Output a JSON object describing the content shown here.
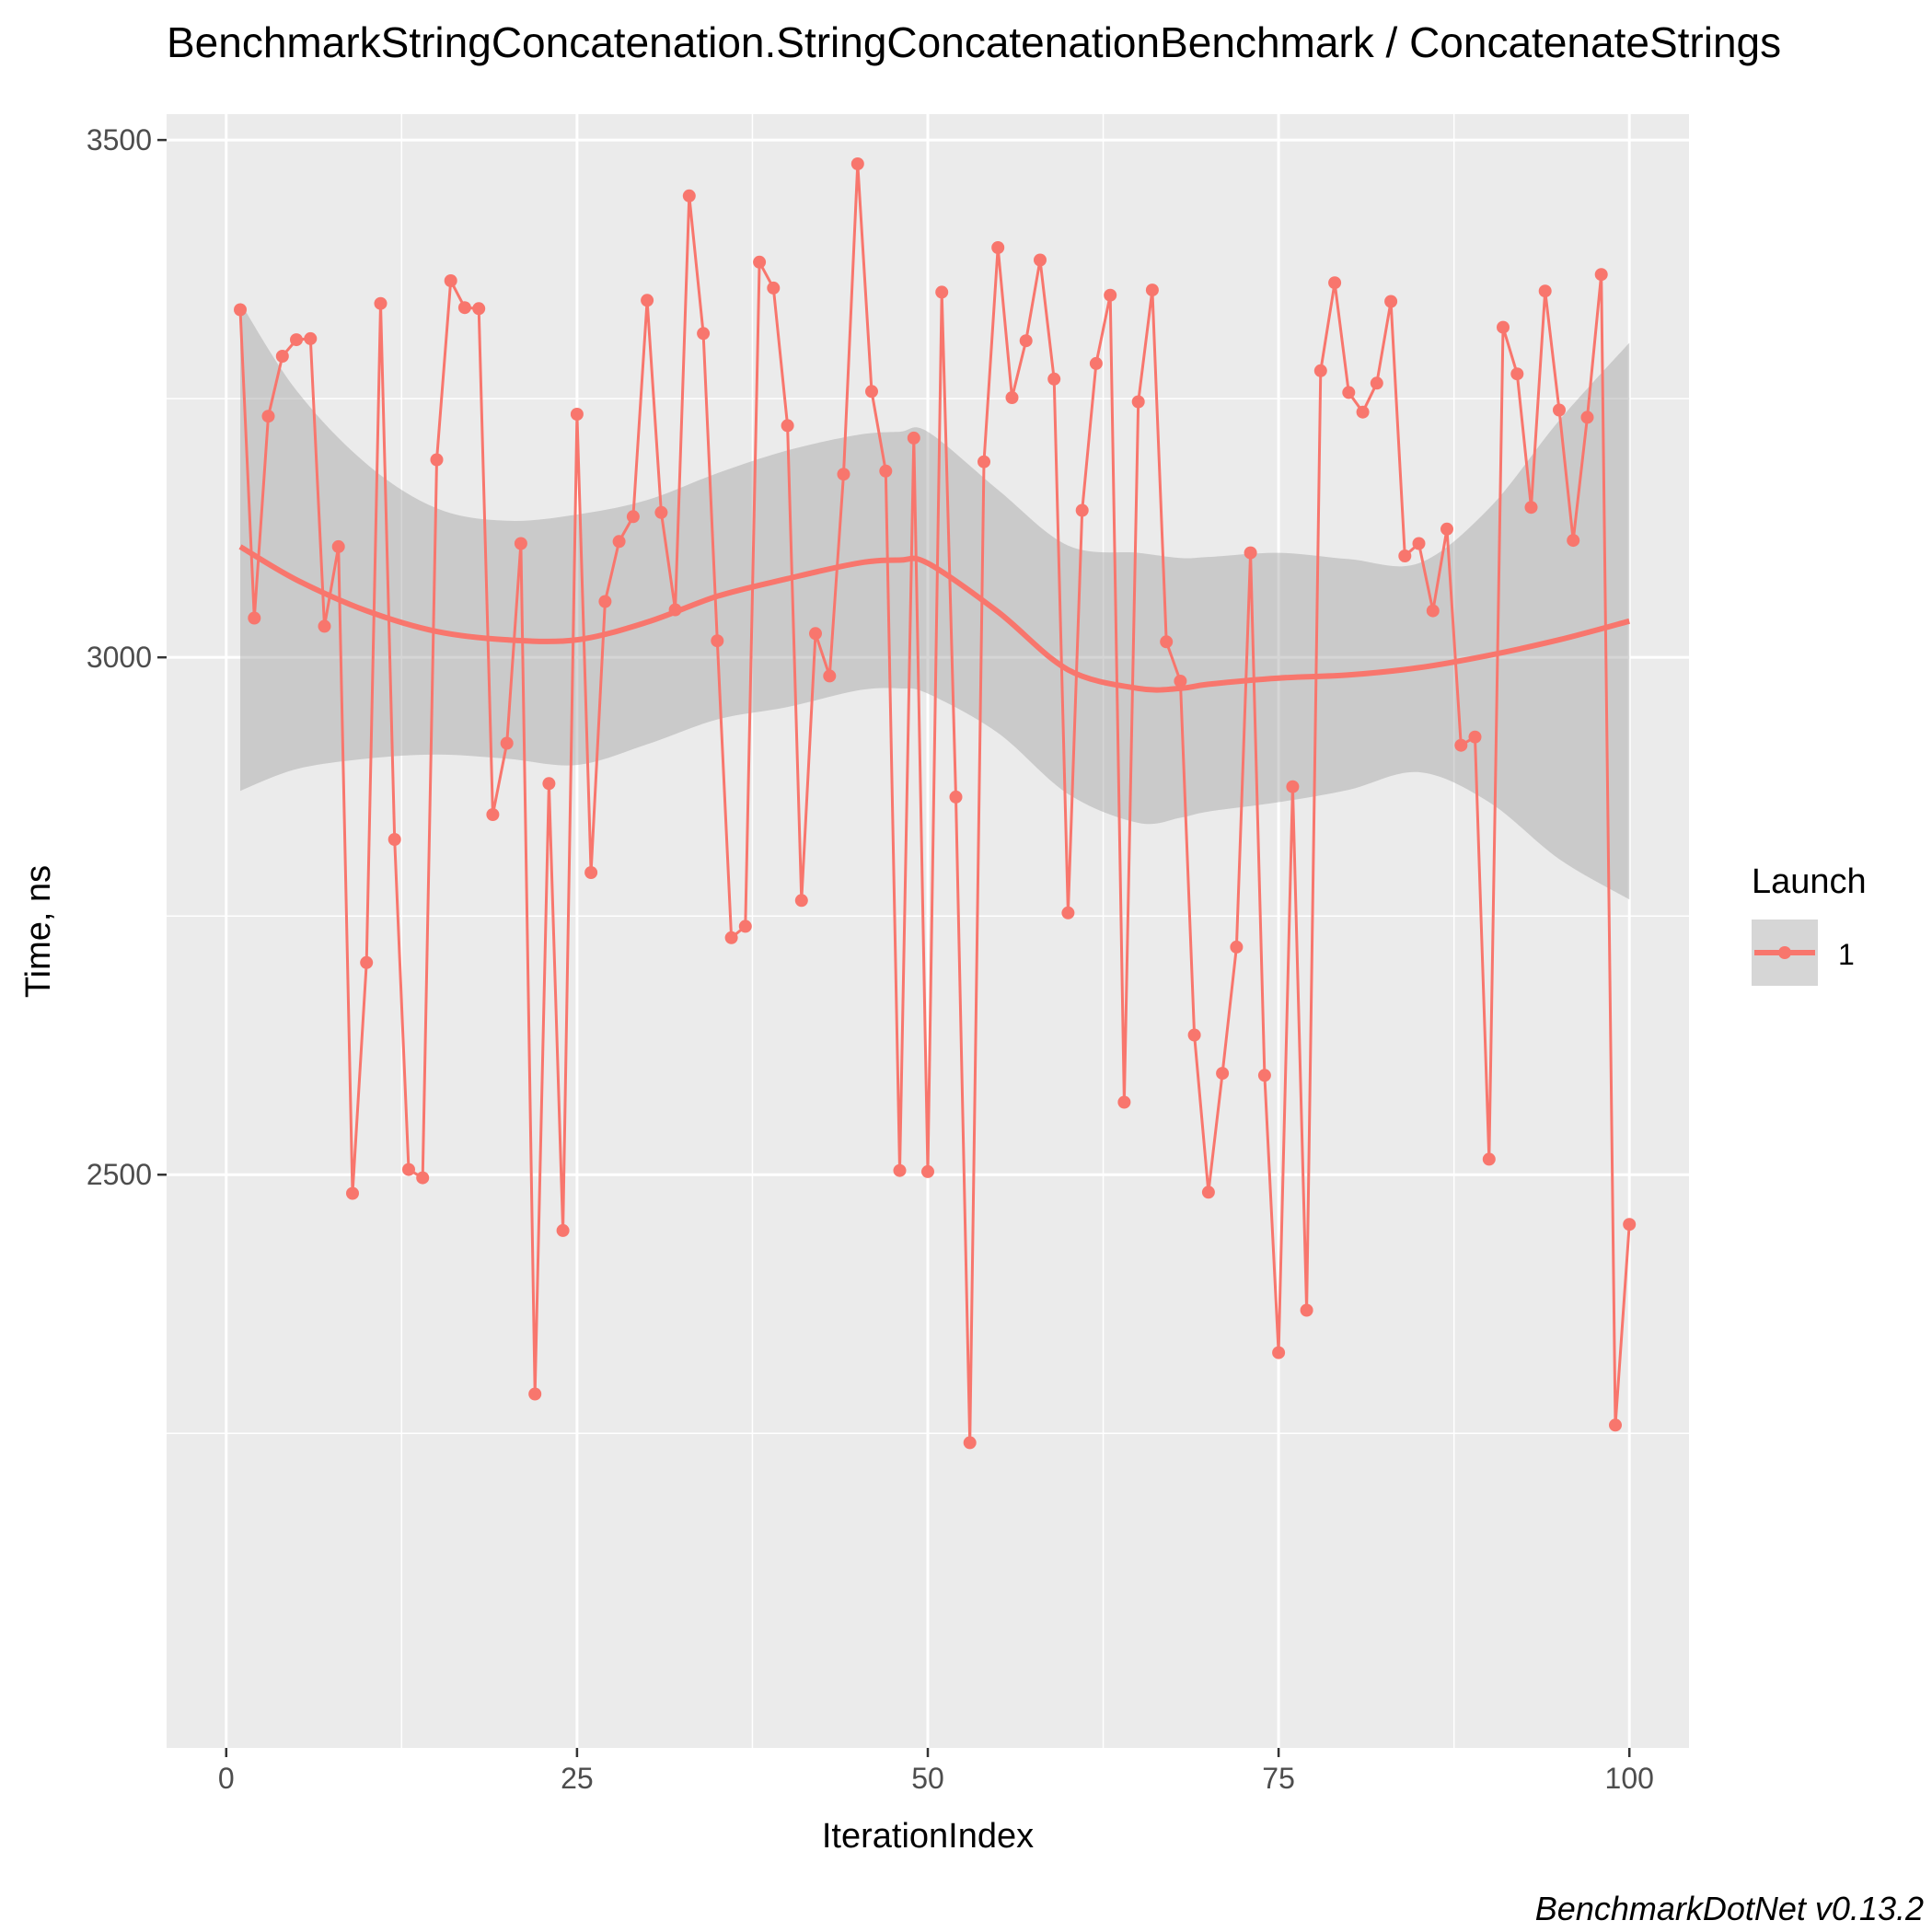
{
  "chart_data": {
    "type": "line",
    "title": "BenchmarkStringConcatenation.StringConcatenationBenchmark / ConcatenateStrings",
    "xlabel": "IterationIndex",
    "ylabel": "Time, ns",
    "caption": "BenchmarkDotNet v0.13.2",
    "xlim": [
      -4.25,
      104.25
    ],
    "ylim": [
      1946,
      3525
    ],
    "x_ticks": [
      0,
      25,
      50,
      75,
      100
    ],
    "y_ticks": [
      2500,
      3000,
      3500
    ],
    "x_tick_labels": [
      "0",
      "25",
      "50",
      "75",
      "100"
    ],
    "y_tick_labels": [
      "2500",
      "3000",
      "3500"
    ],
    "grid": true,
    "legend": {
      "title": "Launch",
      "position": "right",
      "entries": [
        "1"
      ]
    },
    "colors": {
      "series": "#f8766d",
      "band": "#999999",
      "panel": "#ebebeb",
      "grid": "#ffffff"
    },
    "series": [
      {
        "name": "1",
        "x": [
          1,
          2,
          3,
          4,
          5,
          6,
          7,
          8,
          9,
          10,
          11,
          12,
          13,
          14,
          15,
          16,
          17,
          18,
          19,
          20,
          21,
          22,
          23,
          24,
          25,
          26,
          27,
          28,
          29,
          30,
          31,
          32,
          33,
          34,
          35,
          36,
          37,
          38,
          39,
          40,
          41,
          42,
          43,
          44,
          45,
          46,
          47,
          48,
          49,
          50,
          51,
          52,
          53,
          54,
          55,
          56,
          57,
          58,
          59,
          60,
          61,
          62,
          63,
          64,
          65,
          66,
          67,
          68,
          69,
          70,
          71,
          72,
          73,
          74,
          75,
          76,
          77,
          78,
          79,
          80,
          81,
          82,
          83,
          84,
          85,
          86,
          87,
          88,
          89,
          90,
          91,
          92,
          93,
          94,
          95,
          96,
          97,
          98,
          99,
          100
        ],
        "y": [
          3336,
          3038,
          3233,
          3291,
          3307,
          3308,
          3030,
          3107,
          2482,
          2705,
          3342,
          2824,
          2505,
          2497,
          3191,
          3364,
          3338,
          3337,
          2848,
          2917,
          3110,
          2288,
          2878,
          2446,
          3235,
          2792,
          3054,
          3112,
          3136,
          3345,
          3140,
          3046,
          3446,
          3313,
          3016,
          2729,
          2740,
          3382,
          3357,
          3224,
          2765,
          3023,
          2982,
          3177,
          3477,
          3257,
          3180,
          2504,
          3212,
          2503,
          3353,
          2865,
          2241,
          3189,
          3396,
          3251,
          3306,
          3384,
          3269,
          2753,
          3142,
          3284,
          3350,
          2570,
          3247,
          3355,
          3015,
          2977,
          2635,
          2483,
          2598,
          2720,
          3101,
          2596,
          2328,
          2875,
          2369,
          3277,
          3362,
          3256,
          3237,
          3265,
          3344,
          3098,
          3110,
          3045,
          3124,
          2915,
          2923,
          2515,
          3319,
          3274,
          3145,
          3354,
          3239,
          3113,
          3232,
          3370,
          2258,
          2452
        ]
      }
    ],
    "smooth": {
      "x": [
        1,
        5,
        10,
        15,
        20,
        25,
        30,
        35,
        40,
        45,
        48,
        50,
        55,
        60,
        65,
        68,
        70,
        75,
        80,
        85,
        90,
        95,
        100
      ],
      "fit": [
        3107,
        3075,
        3045,
        3025,
        3017,
        3017,
        3034,
        3059,
        3076,
        3091,
        3094,
        3091,
        3044,
        2988,
        2970,
        2970,
        2974,
        2980,
        2983,
        2990,
        3002,
        3017,
        3035
      ],
      "lower": [
        2871,
        2892,
        2902,
        2906,
        2902,
        2896,
        2916,
        2940,
        2952,
        2968,
        2970,
        2965,
        2927,
        2868,
        2840,
        2845,
        2851,
        2860,
        2872,
        2889,
        2860,
        2805,
        2766
      ],
      "upper": [
        3343,
        3258,
        3187,
        3144,
        3132,
        3138,
        3152,
        3178,
        3200,
        3215,
        3218,
        3218,
        3162,
        3108,
        3101,
        3096,
        3097,
        3101,
        3095,
        3091,
        3144,
        3229,
        3304
      ]
    }
  }
}
